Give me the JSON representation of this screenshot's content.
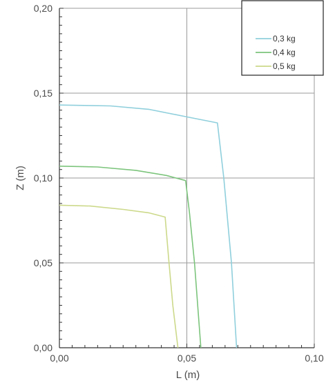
{
  "chart_data": {
    "type": "line",
    "title": "",
    "xlabel": "L (m)",
    "ylabel": "Z (m)",
    "xlim": [
      0,
      0.1
    ],
    "ylim": [
      0,
      0.2
    ],
    "x_ticks": [
      "0,00",
      "0,05",
      "0,10"
    ],
    "y_ticks": [
      "0,00",
      "0,05",
      "0,10",
      "0,15",
      "0,20"
    ],
    "grid": true,
    "legend_position": "top-right",
    "series": [
      {
        "name": "0,3 kg",
        "color": "#8fcfdc",
        "points": [
          [
            0,
            0.143
          ],
          [
            0.02,
            0.1425
          ],
          [
            0.035,
            0.1405
          ],
          [
            0.05,
            0.136
          ],
          [
            0.062,
            0.1325
          ],
          [
            0.0645,
            0.1
          ],
          [
            0.0675,
            0.05
          ],
          [
            0.0695,
            0
          ]
        ]
      },
      {
        "name": "0,4 kg",
        "color": "#7cc47c",
        "points": [
          [
            0,
            0.107
          ],
          [
            0.015,
            0.1065
          ],
          [
            0.03,
            0.1045
          ],
          [
            0.042,
            0.1015
          ],
          [
            0.0495,
            0.0985
          ],
          [
            0.051,
            0.08
          ],
          [
            0.053,
            0.05
          ],
          [
            0.0555,
            0
          ]
        ]
      },
      {
        "name": "0,5 kg",
        "color": "#ccd98a",
        "points": [
          [
            0,
            0.084
          ],
          [
            0.012,
            0.0835
          ],
          [
            0.025,
            0.0815
          ],
          [
            0.035,
            0.0795
          ],
          [
            0.0415,
            0.077
          ],
          [
            0.043,
            0.05
          ],
          [
            0.0445,
            0.025
          ],
          [
            0.0465,
            0
          ]
        ]
      }
    ]
  }
}
